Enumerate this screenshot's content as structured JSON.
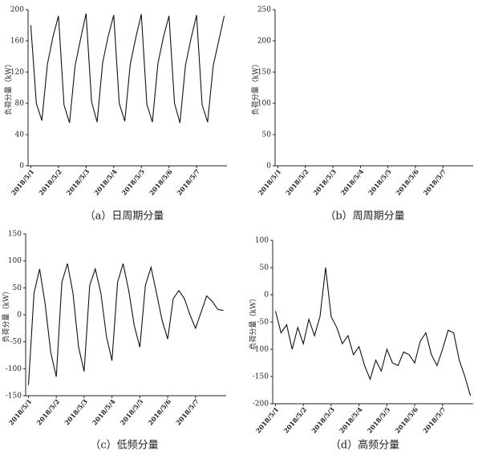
{
  "chart_data": [
    {
      "type": "line",
      "caption": "（a）日周期分量",
      "ylabel": "负荷分量（kW）",
      "xlim": [
        -0.1,
        7.1
      ],
      "ylim": [
        0,
        200
      ],
      "yticks": [
        0,
        40,
        80,
        120,
        160,
        200
      ],
      "xticks": [
        {
          "value": 0,
          "label": "2018/5/1"
        },
        {
          "value": 1,
          "label": "2018/5/2"
        },
        {
          "value": 2,
          "label": "2018/5/3"
        },
        {
          "value": 3,
          "label": "2018/5/4"
        },
        {
          "value": 4,
          "label": "2018/5/5"
        },
        {
          "value": 5,
          "label": "2018/5/6"
        },
        {
          "value": 6,
          "label": "2018/5/7"
        }
      ],
      "x": [
        0,
        0.2,
        0.4,
        0.6,
        0.8,
        1,
        1.2,
        1.4,
        1.6,
        1.8,
        2,
        2.2,
        2.4,
        2.6,
        2.8,
        3,
        3.2,
        3.4,
        3.6,
        3.8,
        4,
        4.2,
        4.4,
        4.6,
        4.8,
        5,
        5.2,
        5.4,
        5.6,
        5.8,
        6,
        6.2,
        6.4,
        6.6,
        6.8,
        7
      ],
      "series": [
        {
          "color": "#111111",
          "values": [
            180,
            80,
            58,
            130,
            165,
            192,
            78,
            55,
            128,
            162,
            195,
            82,
            56,
            132,
            166,
            193,
            80,
            57,
            130,
            164,
            194,
            79,
            56,
            131,
            165,
            192,
            80,
            55,
            129,
            163,
            193,
            78,
            56,
            128,
            160,
            192
          ]
        }
      ]
    },
    {
      "type": "line",
      "caption": "（b）周周期分量",
      "ylabel": "负荷分量（kW）",
      "xlim": [
        -0.1,
        7.1
      ],
      "ylim": [
        0,
        250
      ],
      "yticks": [
        0,
        50,
        100,
        150,
        200,
        250
      ],
      "xticks": [
        {
          "value": 0,
          "label": "2018/5/1"
        },
        {
          "value": 1,
          "label": "2018/5/2"
        },
        {
          "value": 2,
          "label": "2018/5/3"
        },
        {
          "value": 3,
          "label": "2018/5/4"
        },
        {
          "value": 4,
          "label": "2018/5/5"
        },
        {
          "value": 5,
          "label": "2018/5/6"
        },
        {
          "value": 6,
          "label": "2018/5/7"
        }
      ],
      "series": []
    },
    {
      "type": "line",
      "caption": "（c）低频分量",
      "ylabel": "负荷分量（kW）",
      "xlim": [
        -0.1,
        7.1
      ],
      "ylim": [
        -150,
        150
      ],
      "yticks": [
        -150,
        -100,
        -50,
        0,
        50,
        100,
        150
      ],
      "xticks": [
        {
          "value": 0,
          "label": "2018/5/1"
        },
        {
          "value": 1,
          "label": "2018/5/2"
        },
        {
          "value": 2,
          "label": "2018/5/3"
        },
        {
          "value": 3,
          "label": "2018/5/4"
        },
        {
          "value": 4,
          "label": "2018/5/5"
        },
        {
          "value": 5,
          "label": "2018/5/6"
        },
        {
          "value": 6,
          "label": "2018/5/7"
        }
      ],
      "x": [
        0,
        0.2,
        0.4,
        0.6,
        0.8,
        1,
        1.2,
        1.4,
        1.6,
        1.8,
        2,
        2.2,
        2.4,
        2.6,
        2.8,
        3,
        3.2,
        3.4,
        3.6,
        3.8,
        4,
        4.2,
        4.4,
        4.6,
        4.8,
        5,
        5.2,
        5.4,
        5.6,
        5.8,
        6,
        6.2,
        6.4,
        6.6,
        6.8,
        7
      ],
      "series": [
        {
          "color": "#111111",
          "values": [
            -130,
            40,
            85,
            20,
            -70,
            -115,
            60,
            95,
            40,
            -60,
            -105,
            55,
            85,
            40,
            -40,
            -85,
            60,
            95,
            45,
            -20,
            -60,
            55,
            88,
            40,
            -10,
            -45,
            30,
            45,
            30,
            0,
            -25,
            5,
            35,
            25,
            10,
            8
          ]
        }
      ]
    },
    {
      "type": "line",
      "caption": "（d）高频分量",
      "ylabel": "负荷分量（kW）",
      "xlim": [
        -0.1,
        7.1
      ],
      "ylim": [
        -200,
        100
      ],
      "yticks": [
        -200,
        -150,
        -100,
        -50,
        0,
        50,
        100
      ],
      "xticks": [
        {
          "value": 0,
          "label": "2018/5/1"
        },
        {
          "value": 1,
          "label": "2018/5/2"
        },
        {
          "value": 2,
          "label": "2018/5/3"
        },
        {
          "value": 3,
          "label": "2018/5/4"
        },
        {
          "value": 4,
          "label": "2018/5/5"
        },
        {
          "value": 5,
          "label": "2018/5/6"
        },
        {
          "value": 6,
          "label": "2018/5/7"
        }
      ],
      "x": [
        0,
        0.2,
        0.4,
        0.6,
        0.8,
        1,
        1.2,
        1.4,
        1.6,
        1.8,
        2,
        2.2,
        2.4,
        2.6,
        2.8,
        3,
        3.2,
        3.4,
        3.6,
        3.8,
        4,
        4.2,
        4.4,
        4.6,
        4.8,
        5,
        5.2,
        5.4,
        5.6,
        5.8,
        6,
        6.2,
        6.4,
        6.6,
        6.8,
        7
      ],
      "series": [
        {
          "color": "#111111",
          "values": [
            -30,
            -70,
            -55,
            -100,
            -60,
            -90,
            -45,
            -75,
            -40,
            50,
            -40,
            -60,
            -90,
            -75,
            -110,
            -95,
            -130,
            -155,
            -120,
            -140,
            -100,
            -125,
            -130,
            -105,
            -110,
            -125,
            -85,
            -70,
            -110,
            -130,
            -100,
            -65,
            -70,
            -120,
            -150,
            -185
          ]
        }
      ]
    }
  ]
}
